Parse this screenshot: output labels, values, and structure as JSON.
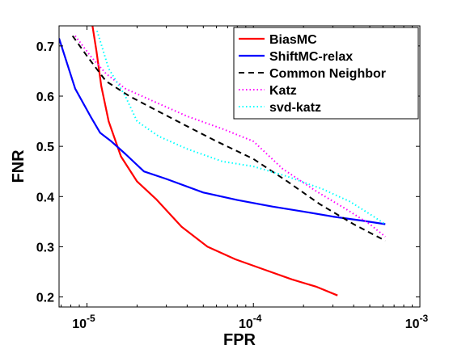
{
  "chart_data": {
    "type": "line",
    "xlabel": "FPR",
    "ylabel": "FNR",
    "xscale": "log",
    "xlim": [
      6.8e-06,
      0.001
    ],
    "ylim": [
      0.18,
      0.74
    ],
    "grid": false,
    "legend_position": "top-right",
    "x_ticks": [
      {
        "value": 1e-05,
        "base": "10",
        "exp": "-5"
      },
      {
        "value": 0.0001,
        "base": "10",
        "exp": "-4"
      },
      {
        "value": 0.001,
        "base": "10",
        "exp": "-3"
      }
    ],
    "y_ticks": [
      {
        "value": 0.2,
        "label": "0.2"
      },
      {
        "value": 0.3,
        "label": "0.3"
      },
      {
        "value": 0.4,
        "label": "0.4"
      },
      {
        "value": 0.5,
        "label": "0.5"
      },
      {
        "value": 0.6,
        "label": "0.6"
      },
      {
        "value": 0.7,
        "label": "0.7"
      }
    ],
    "series": [
      {
        "name": "BiasMC",
        "color": "#ff0000",
        "dash": "solid",
        "points": [
          [
            1.08e-05,
            0.74
          ],
          [
            1.14e-05,
            0.69
          ],
          [
            1.22e-05,
            0.62
          ],
          [
            1.35e-05,
            0.55
          ],
          [
            1.6e-05,
            0.48
          ],
          [
            2e-05,
            0.43
          ],
          [
            2.6e-05,
            0.395
          ],
          [
            3.7e-05,
            0.34
          ],
          [
            5.3e-05,
            0.3
          ],
          [
            7.8e-05,
            0.275
          ],
          [
            0.000115,
            0.255
          ],
          [
            0.00017,
            0.235
          ],
          [
            0.00024,
            0.22
          ],
          [
            0.00032,
            0.203
          ]
        ]
      },
      {
        "name": "ShiftMC-relax",
        "color": "#0000ff",
        "dash": "solid",
        "points": [
          [
            6.8e-06,
            0.715
          ],
          [
            8.5e-06,
            0.615
          ],
          [
            1.05e-05,
            0.56
          ],
          [
            1.2e-05,
            0.527
          ],
          [
            1.4e-05,
            0.51
          ],
          [
            1.7e-05,
            0.485
          ],
          [
            2.2e-05,
            0.45
          ],
          [
            3e-05,
            0.435
          ],
          [
            5e-05,
            0.408
          ],
          [
            8e-05,
            0.393
          ],
          [
            0.00013,
            0.38
          ],
          [
            0.0002,
            0.37
          ],
          [
            0.0003,
            0.36
          ],
          [
            0.00045,
            0.352
          ],
          [
            0.00062,
            0.345
          ]
        ]
      },
      {
        "name": "Common Neighbor",
        "color": "#000000",
        "dash": "dashed",
        "points": [
          [
            8.2e-06,
            0.72
          ],
          [
            1e-05,
            0.68
          ],
          [
            1.3e-05,
            0.63
          ],
          [
            1.8e-05,
            0.6
          ],
          [
            2.5e-05,
            0.575
          ],
          [
            4e-05,
            0.54
          ],
          [
            6e-05,
            0.51
          ],
          [
            0.0001,
            0.475
          ],
          [
            0.00016,
            0.43
          ],
          [
            0.00025,
            0.385
          ],
          [
            0.0004,
            0.345
          ],
          [
            0.00062,
            0.312
          ]
        ]
      },
      {
        "name": "Katz",
        "color": "#ff00ff",
        "dash": "dotted",
        "points": [
          [
            8.5e-06,
            0.72
          ],
          [
            1.05e-05,
            0.68
          ],
          [
            1.3e-05,
            0.645
          ],
          [
            1.7e-05,
            0.615
          ],
          [
            2.5e-05,
            0.59
          ],
          [
            4e-05,
            0.56
          ],
          [
            6.5e-05,
            0.535
          ],
          [
            0.0001,
            0.51
          ],
          [
            0.00015,
            0.455
          ],
          [
            0.00024,
            0.41
          ],
          [
            0.00036,
            0.375
          ],
          [
            0.0005,
            0.345
          ],
          [
            0.00062,
            0.32
          ]
        ]
      },
      {
        "name": "svd-katz",
        "color": "#00ffff",
        "dash": "dotted",
        "points": [
          [
            1.15e-05,
            0.73
          ],
          [
            1.35e-05,
            0.655
          ],
          [
            1.7e-05,
            0.6
          ],
          [
            2e-05,
            0.55
          ],
          [
            2.7e-05,
            0.52
          ],
          [
            4e-05,
            0.495
          ],
          [
            6.5e-05,
            0.47
          ],
          [
            0.0001,
            0.46
          ],
          [
            0.00016,
            0.44
          ],
          [
            0.00026,
            0.415
          ],
          [
            0.00038,
            0.39
          ],
          [
            0.0005,
            0.365
          ],
          [
            0.00062,
            0.345
          ]
        ]
      }
    ]
  }
}
